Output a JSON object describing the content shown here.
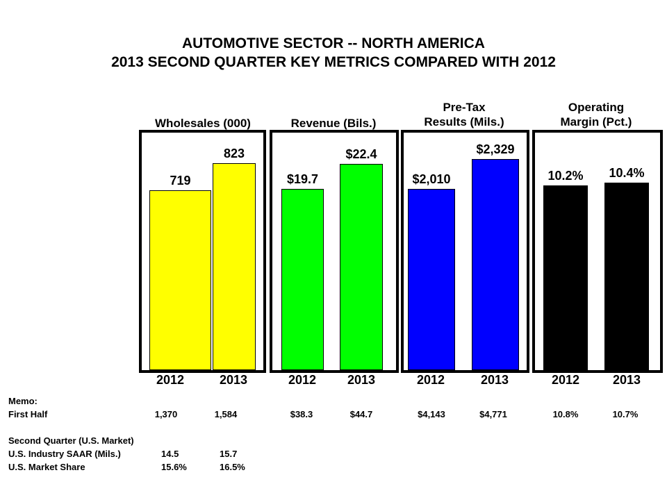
{
  "chart_data": {
    "type": "bar",
    "title": "AUTOMOTIVE SECTOR -- NORTH AMERICA",
    "subtitle": "2013 SECOND QUARTER KEY METRICS COMPARED WITH 2012",
    "categories": [
      "2012",
      "2013"
    ],
    "panels": [
      {
        "name": "Wholesales (000)",
        "title_lines": [
          "Wholesales (000)"
        ],
        "color": "#ffff00",
        "values": [
          719,
          823
        ],
        "labels": [
          "719",
          "823"
        ]
      },
      {
        "name": "Revenue (Bils.)",
        "title_lines": [
          "Revenue (Bils.)"
        ],
        "color": "#00ff00",
        "values": [
          19.7,
          22.4
        ],
        "labels": [
          "$19.7",
          "$22.4"
        ]
      },
      {
        "name": "Pre-Tax Results (Mils.)",
        "title_lines": [
          "Pre-Tax",
          "Results (Mils.)"
        ],
        "color": "#0000ff",
        "values": [
          2010,
          2329
        ],
        "labels": [
          "$2,010",
          "$2,329"
        ]
      },
      {
        "name": "Operating Margin (Pct.)",
        "title_lines": [
          "Operating",
          "Margin (Pct.)"
        ],
        "color": "#000000",
        "values": [
          10.2,
          10.4
        ],
        "labels": [
          "10.2%",
          "10.4%"
        ]
      }
    ],
    "xlabel": "",
    "ylabel": "",
    "grid": false,
    "legend": "none"
  },
  "memo": {
    "heading": "Memo:",
    "first_half": {
      "label": "First Half",
      "values": [
        "1,370",
        "1,584",
        "$38.3",
        "$44.7",
        "$4,143",
        "$4,771",
        "10.8%",
        "10.7%"
      ]
    },
    "second_quarter": {
      "heading": "Second Quarter (U.S. Market)",
      "rows": [
        {
          "label": "U.S. Industry SAAR (Mils.)",
          "values": [
            "14.5",
            "15.7"
          ]
        },
        {
          "label": "U.S. Market Share",
          "values": [
            "15.6%",
            "16.5%"
          ]
        }
      ]
    }
  }
}
